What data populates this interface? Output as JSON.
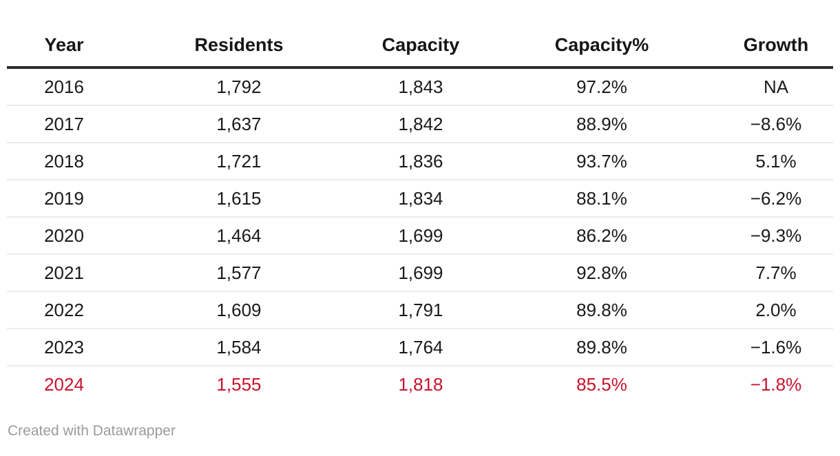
{
  "table": {
    "columns": [
      "Year",
      "Residents",
      "Capacity",
      "Capacity%",
      "Growth"
    ],
    "rows": [
      {
        "cells": [
          "2016",
          "1,792",
          "1,843",
          "97.2%",
          "NA"
        ],
        "highlighted": false
      },
      {
        "cells": [
          "2017",
          "1,637",
          "1,842",
          "88.9%",
          "−8.6%"
        ],
        "highlighted": false
      },
      {
        "cells": [
          "2018",
          "1,721",
          "1,836",
          "93.7%",
          "5.1%"
        ],
        "highlighted": false
      },
      {
        "cells": [
          "2019",
          "1,615",
          "1,834",
          "88.1%",
          "−6.2%"
        ],
        "highlighted": false
      },
      {
        "cells": [
          "2020",
          "1,464",
          "1,699",
          "86.2%",
          "−9.3%"
        ],
        "highlighted": false
      },
      {
        "cells": [
          "2021",
          "1,577",
          "1,699",
          "92.8%",
          "7.7%"
        ],
        "highlighted": false
      },
      {
        "cells": [
          "2022",
          "1,609",
          "1,791",
          "89.8%",
          "2.0%"
        ],
        "highlighted": false
      },
      {
        "cells": [
          "2023",
          "1,584",
          "1,764",
          "89.8%",
          "−1.6%"
        ],
        "highlighted": false
      },
      {
        "cells": [
          "2024",
          "1,555",
          "1,818",
          "85.5%",
          "−1.8%"
        ],
        "highlighted": true
      }
    ]
  },
  "footer": {
    "attribution": "Created with Datawrapper"
  },
  "colors": {
    "highlight_red": "#c9132b",
    "header_rule": "#2b2b2b",
    "row_divider": "#ececec",
    "text": "#1a1a1a",
    "attribution_gray": "#9b9b9b"
  },
  "chart_data": {
    "type": "table",
    "columns": [
      "Year",
      "Residents",
      "Capacity",
      "Capacity%",
      "Growth"
    ],
    "rows": [
      [
        "2016",
        "1,792",
        "1,843",
        "97.2%",
        "NA"
      ],
      [
        "2017",
        "1,637",
        "1,842",
        "88.9%",
        "−8.6%"
      ],
      [
        "2018",
        "1,721",
        "1,836",
        "93.7%",
        "5.1%"
      ],
      [
        "2019",
        "1,615",
        "1,834",
        "88.1%",
        "−6.2%"
      ],
      [
        "2020",
        "1,464",
        "1,699",
        "86.2%",
        "−9.3%"
      ],
      [
        "2021",
        "1,577",
        "1,699",
        "92.8%",
        "7.7%"
      ],
      [
        "2022",
        "1,609",
        "1,791",
        "89.8%",
        "2.0%"
      ],
      [
        "2023",
        "1,584",
        "1,764",
        "89.8%",
        "−1.6%"
      ],
      [
        "2024",
        "1,555",
        "1,818",
        "85.5%",
        "−1.8%"
      ]
    ],
    "numeric": {
      "years": [
        2016,
        2017,
        2018,
        2019,
        2020,
        2021,
        2022,
        2023,
        2024
      ],
      "residents": [
        1792,
        1637,
        1721,
        1615,
        1464,
        1577,
        1609,
        1584,
        1555
      ],
      "capacity": [
        1843,
        1842,
        1836,
        1834,
        1699,
        1699,
        1791,
        1764,
        1818
      ],
      "capacity_pct": [
        97.2,
        88.9,
        93.7,
        88.1,
        86.2,
        92.8,
        89.8,
        89.8,
        85.5
      ],
      "growth_pct": [
        null,
        -8.6,
        5.1,
        -6.2,
        -9.3,
        7.7,
        2.0,
        -1.6,
        -1.8
      ]
    },
    "highlighted_row": "2024",
    "title": "",
    "legend": "none",
    "grid": "horizontal row dividers"
  }
}
